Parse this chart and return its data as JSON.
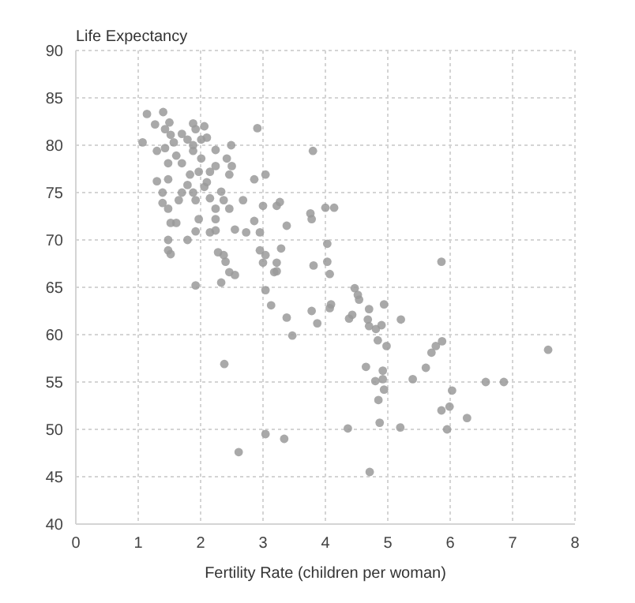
{
  "chart_data": {
    "type": "scatter",
    "ylabel": "Life Expectancy",
    "xlabel": "Fertility Rate (children per woman)",
    "xlim": [
      0,
      8
    ],
    "xticks": [
      0,
      1,
      2,
      3,
      4,
      5,
      6,
      7,
      8
    ],
    "ylim": [
      40,
      90
    ],
    "yticks": [
      40,
      45,
      50,
      55,
      60,
      65,
      70,
      75,
      80,
      85,
      90
    ],
    "grid": true,
    "marker": "circle",
    "series": [
      {
        "color": "#9a9a9a",
        "x": [
          1.14,
          1.4,
          1.27,
          1.5,
          1.43,
          1.52,
          1.88,
          1.92,
          2.06,
          2.1,
          1.7,
          1.79,
          1.07,
          1.3,
          1.43,
          1.57,
          1.88,
          2.01,
          2.91,
          2.49,
          2.24,
          1.88,
          2.01,
          1.61,
          1.48,
          1.7,
          2.42,
          2.24,
          1.97,
          2.15,
          1.83,
          1.79,
          1.3,
          1.48,
          2.1,
          2.46,
          2.5,
          2.86,
          3.04,
          1.39,
          1.39,
          1.48,
          1.7,
          1.65,
          1.88,
          1.92,
          2.06,
          2.15,
          2.33,
          2.37,
          2.24,
          2.46,
          2.68,
          3.0,
          3.22,
          3.38,
          2.86,
          2.95,
          2.73,
          2.55,
          2.24,
          1.97,
          1.52,
          1.61,
          1.92,
          2.15,
          2.24,
          1.48,
          1.79,
          1.48,
          1.52,
          2.28,
          2.37,
          2.95,
          3.04,
          3.22,
          3.0,
          2.4,
          2.46,
          2.55,
          1.92,
          2.33,
          3.04,
          3.13,
          3.38,
          3.47,
          2.38,
          3.04,
          3.34,
          2.61,
          3.18,
          3.8,
          3.27,
          3.76,
          3.78,
          4.0,
          4.14,
          3.29,
          3.22,
          3.81,
          4.03,
          4.03,
          4.07,
          5.86,
          4.47,
          4.52,
          4.54,
          4.09,
          4.07,
          4.94,
          4.7,
          3.78,
          3.87,
          4.38,
          4.43,
          4.68,
          4.7,
          4.81,
          4.9,
          5.21,
          4.84,
          4.98,
          4.65,
          4.8,
          4.92,
          4.92,
          4.94,
          4.85,
          5.4,
          5.61,
          5.7,
          5.77,
          5.87,
          5.86,
          4.87,
          5.2,
          4.36,
          4.71,
          7.57,
          6.57,
          6.86,
          6.03,
          5.99,
          6.27,
          5.95
        ],
        "values": [
          83.3,
          83.5,
          82.2,
          82.4,
          81.7,
          81.1,
          82.3,
          81.7,
          82.0,
          80.8,
          81.2,
          80.6,
          80.3,
          79.4,
          79.7,
          80.3,
          80.0,
          80.6,
          81.8,
          80.0,
          79.5,
          79.4,
          78.6,
          78.9,
          78.1,
          78.1,
          78.6,
          77.8,
          77.2,
          77.2,
          76.9,
          75.8,
          76.2,
          76.4,
          76.1,
          76.9,
          77.8,
          76.4,
          76.9,
          75.0,
          73.9,
          73.3,
          75.0,
          74.2,
          75.0,
          74.2,
          75.6,
          74.4,
          75.1,
          74.2,
          73.3,
          73.3,
          74.2,
          73.6,
          73.6,
          71.5,
          72.0,
          70.8,
          70.8,
          71.1,
          72.2,
          72.2,
          71.8,
          71.8,
          70.9,
          70.8,
          71.0,
          70.0,
          70.0,
          68.9,
          68.5,
          68.7,
          68.4,
          68.9,
          68.4,
          67.6,
          67.6,
          67.7,
          66.6,
          66.3,
          65.2,
          65.5,
          64.7,
          63.1,
          61.8,
          59.9,
          56.9,
          49.5,
          49.0,
          47.6,
          66.6,
          79.4,
          74.0,
          72.8,
          72.2,
          73.4,
          73.4,
          69.1,
          66.7,
          67.3,
          69.6,
          67.7,
          66.4,
          67.7,
          64.9,
          64.2,
          63.7,
          63.2,
          62.8,
          63.2,
          62.7,
          62.5,
          61.2,
          61.7,
          62.1,
          61.6,
          60.9,
          60.6,
          61.0,
          61.6,
          59.4,
          58.8,
          56.6,
          55.1,
          56.2,
          55.3,
          54.2,
          53.1,
          55.3,
          56.5,
          58.1,
          58.8,
          59.3,
          52.0,
          50.7,
          50.2,
          50.1,
          45.5,
          58.4,
          55.0,
          55.0,
          54.1,
          52.4,
          51.2,
          50.0
        ]
      }
    ]
  }
}
